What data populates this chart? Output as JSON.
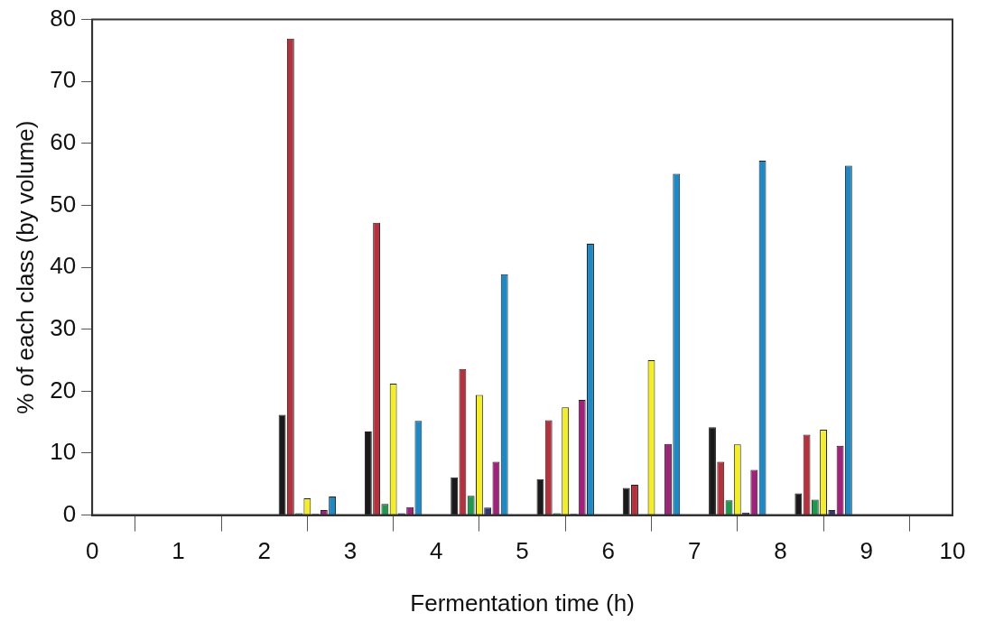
{
  "chart_data": {
    "type": "bar",
    "xlabel": "Fermentation time (h)",
    "ylabel": "% of each class (by volume)",
    "x": [
      2.5,
      3.5,
      4.5,
      5.5,
      6.5,
      7.5,
      8.5
    ],
    "xlim": [
      0,
      10
    ],
    "xticks": [
      0,
      1,
      2,
      3,
      4,
      5,
      6,
      7,
      8,
      9,
      10
    ],
    "ylim": [
      0,
      80
    ],
    "yticks": [
      0,
      10,
      20,
      30,
      40,
      50,
      60,
      70,
      80
    ],
    "grid": false,
    "legend": false,
    "series": [
      {
        "color": "#1a1a1a",
        "values": [
          16.2,
          13.5,
          6.1,
          5.8,
          4.4,
          14.2,
          3.5
        ]
      },
      {
        "color": "#b8303c",
        "values": [
          76.9,
          47.2,
          23.6,
          15.3,
          4.9,
          8.6,
          13
        ]
      },
      {
        "color": "#1a9a4a",
        "values": [
          0.3,
          1.8,
          3.1,
          0.3,
          0.1,
          2.4,
          2.5
        ]
      },
      {
        "color": "#f5ef22",
        "values": [
          2.7,
          21.2,
          19.4,
          17.4,
          25,
          11.4,
          13.8
        ]
      },
      {
        "color": "#34347a",
        "values": [
          0.2,
          0.3,
          1.2,
          0.2,
          0.1,
          0.4,
          0.8
        ]
      },
      {
        "color": "#a3207c",
        "values": [
          0.8,
          1.3,
          8.6,
          18.6,
          11.5,
          7.3,
          11.2
        ]
      },
      {
        "color": "#1a8ac8",
        "values": [
          3,
          15.2,
          38.9,
          43.8,
          55.1,
          57.2,
          56.4
        ]
      }
    ]
  }
}
